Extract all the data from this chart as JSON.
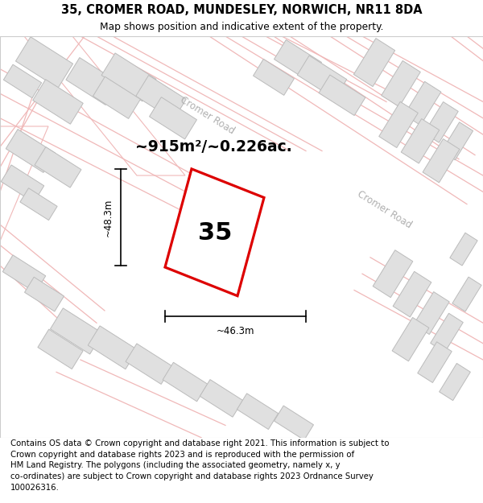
{
  "title_line1": "35, CROMER ROAD, MUNDESLEY, NORWICH, NR11 8DA",
  "title_line2": "Map shows position and indicative extent of the property.",
  "footer_text": "Contains OS data © Crown copyright and database right 2021. This information is subject to Crown copyright and database rights 2023 and is reproduced with the permission of\nHM Land Registry. The polygons (including the associated geometry, namely x, y\nco-ordinates) are subject to Crown copyright and database rights 2023 Ordnance Survey\n100026316.",
  "area_label": "~915m²/~0.226ac.",
  "number_label": "35",
  "dim_width": "~46.3m",
  "dim_height": "~48.3m",
  "road_label_top": "Cromer Road",
  "road_label_right": "Cromer Road",
  "map_bg": "#f9f9f9",
  "building_fill": "#e0e0e0",
  "building_edge": "#bbbbbb",
  "road_line_color": "#f0b8b8",
  "plot_outline_color": "#dd0000",
  "title_fontsize": 10.5,
  "subtitle_fontsize": 8.8,
  "footer_fontsize": 7.3,
  "area_fontsize": 13.5,
  "number_fontsize": 22,
  "dim_fontsize": 8.5,
  "road_label_fontsize": 8.5
}
